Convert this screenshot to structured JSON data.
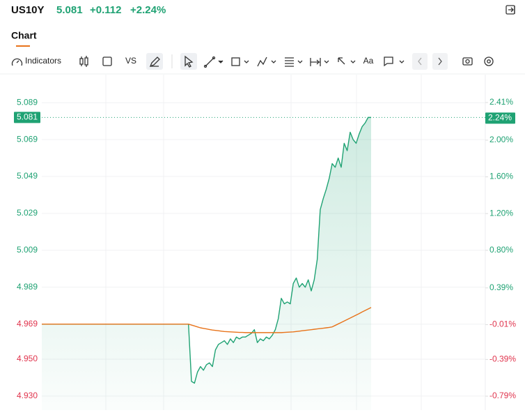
{
  "header": {
    "symbol": "US10Y",
    "price": "5.081",
    "change": "+0.112",
    "change_percent": "+2.24%"
  },
  "tabs": [
    "Chart"
  ],
  "toolbar": {
    "indicators": "Indicators",
    "vs": "VS",
    "text_tool": "Aa"
  },
  "chart_data": {
    "type": "line",
    "ylim": [
      4.9224,
      5.1042
    ],
    "yticks": [
      5.089,
      5.069,
      5.049,
      5.029,
      5.009,
      4.989,
      4.969,
      {
        "value": 4.95,
        "label": "4.950"
      },
      {
        "value": 4.93,
        "label": "4.930"
      }
    ],
    "y2lim": [
      -0.942,
      2.714
    ],
    "y2ticks": [
      {
        "value": 2.41,
        "label": "2.41%"
      },
      {
        "value": 2,
        "label": "2.00%"
      },
      {
        "value": 1.6,
        "label": "1.60%"
      },
      {
        "value": 1.2,
        "label": "1.20%"
      },
      {
        "value": 0.8,
        "label": "0.80%"
      },
      {
        "value": 0.39,
        "label": "0.39%"
      },
      {
        "value": -0.01,
        "label": "-0.01%"
      },
      {
        "value": -0.39,
        "label": "-0.39%"
      },
      {
        "value": -0.79,
        "label": "-0.79%"
      }
    ],
    "grid": true,
    "price_tags": [
      {
        "value": 5.081,
        "label": "5.081"
      },
      {
        "value": 2.24,
        "label": "2.24%",
        "axis": "y2"
      }
    ],
    "series": [
      {
        "color": "#1fa273",
        "area": true,
        "values": [
          4.969,
          4.969,
          4.969,
          4.969,
          4.969,
          4.969,
          4.969,
          4.969,
          4.969,
          4.969,
          4.969,
          4.969,
          4.969,
          4.969,
          4.969,
          4.969,
          4.969,
          4.969,
          4.969,
          4.969,
          4.969,
          4.969,
          4.969,
          4.969,
          4.969,
          4.969,
          4.969,
          4.969,
          4.969,
          4.969,
          4.969,
          4.969,
          4.969,
          4.969,
          4.969,
          4.969,
          4.969,
          4.969,
          4.969,
          4.969,
          4.969,
          4.969,
          4.969,
          4.969,
          4.969,
          4.969,
          4.969,
          4.969,
          4.969,
          4.969,
          4.938,
          4.937,
          4.943,
          4.946,
          4.944,
          4.947,
          4.948,
          4.946,
          4.955,
          4.958,
          4.959,
          4.96,
          4.958,
          4.961,
          4.959,
          4.962,
          4.961,
          4.962,
          4.962,
          4.963,
          4.964,
          4.966,
          4.959,
          4.961,
          4.96,
          4.962,
          4.961,
          4.963,
          4.966,
          4.972,
          4.983,
          4.98,
          4.981,
          4.98,
          4.991,
          4.994,
          4.989,
          4.991,
          4.989,
          4.993,
          4.987,
          4.993,
          5.004,
          5.031,
          5.037,
          5.042,
          5.048,
          5.056,
          5.054,
          5.059,
          5.054,
          5.067,
          5.063,
          5.073,
          5.069,
          5.067,
          5.072,
          5.076,
          5.078,
          5.081,
          5.081
        ]
      },
      {
        "color": "#e8731a",
        "values": [
          4.969,
          4.969,
          4.969,
          4.969,
          4.969,
          4.969,
          4.969,
          4.969,
          4.969,
          4.969,
          4.969,
          4.969,
          4.969,
          4.969,
          4.969,
          4.969,
          4.969,
          4.969,
          4.969,
          4.969,
          4.969,
          4.969,
          4.969,
          4.969,
          4.969,
          4.969,
          4.969,
          4.969,
          4.969,
          4.969,
          4.969,
          4.969,
          4.969,
          4.969,
          4.969,
          4.969,
          4.969,
          4.969,
          4.969,
          4.969,
          4.969,
          4.969,
          4.969,
          4.969,
          4.969,
          4.969,
          4.969,
          4.969,
          4.969,
          4.969,
          4.9685,
          4.968,
          4.9675,
          4.967,
          4.9667,
          4.9664,
          4.9661,
          4.9658,
          4.9656,
          4.9654,
          4.9652,
          4.965,
          4.9649,
          4.9648,
          4.9647,
          4.9646,
          4.9645,
          4.9645,
          4.9644,
          4.9644,
          4.9644,
          4.9644,
          4.9644,
          4.9644,
          4.9644,
          4.9644,
          4.9644,
          4.9644,
          4.9644,
          4.9644,
          4.9644,
          4.9645,
          4.9646,
          4.9647,
          4.9648,
          4.965,
          4.9652,
          4.9654,
          4.9656,
          4.9658,
          4.966,
          4.9662,
          4.9664,
          4.9666,
          4.9668,
          4.967,
          4.9672,
          4.9675,
          4.9683,
          4.9691,
          4.9699,
          4.9707,
          4.9715,
          4.9723,
          4.9731,
          4.9739,
          4.9747,
          4.9756,
          4.9764,
          4.9772,
          4.978
        ]
      }
    ]
  }
}
